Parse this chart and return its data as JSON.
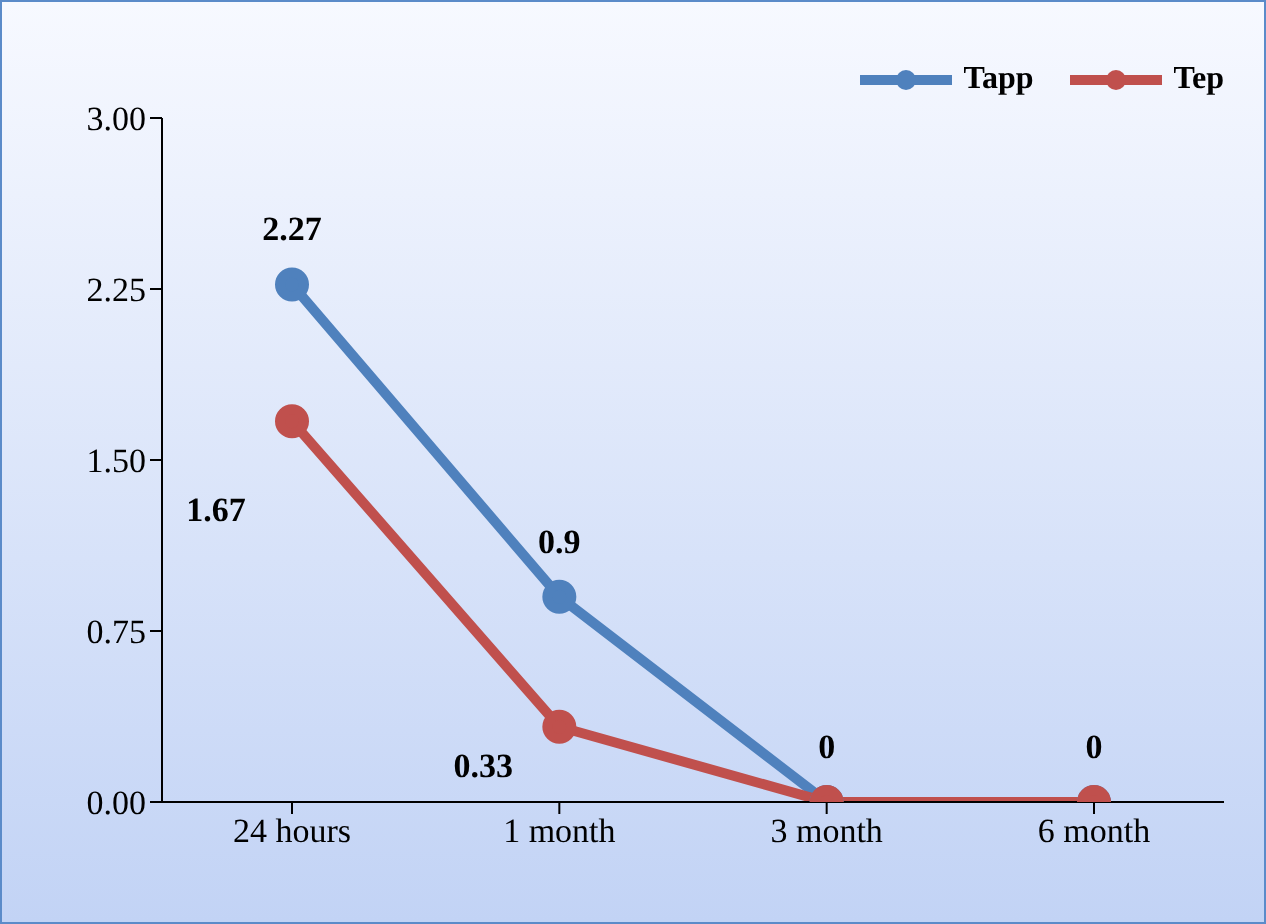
{
  "chart_data": {
    "type": "line",
    "categories": [
      "24 hours",
      "1 month",
      "3 month",
      "6 month"
    ],
    "series": [
      {
        "name": "Tapp",
        "color": "#4f81bd",
        "values": [
          2.27,
          0.9,
          0,
          0
        ],
        "value_labels": [
          "2.27",
          "0.9",
          "0",
          "0"
        ]
      },
      {
        "name": "Tep",
        "color": "#c0504d",
        "values": [
          1.67,
          0.33,
          0,
          0
        ],
        "value_labels": [
          "1.67",
          "0.33",
          null,
          null
        ]
      }
    ],
    "ylim": [
      0,
      3
    ],
    "yticks": [
      {
        "value": 0,
        "label": "0.00"
      },
      {
        "value": 0.75,
        "label": "0.75"
      },
      {
        "value": 1.5,
        "label": "1.50"
      },
      {
        "value": 2.25,
        "label": "2.25"
      },
      {
        "value": 3,
        "label": "3.00"
      }
    ],
    "grid": false,
    "legend": "top right",
    "marker": "circle",
    "line_style": "solid"
  }
}
